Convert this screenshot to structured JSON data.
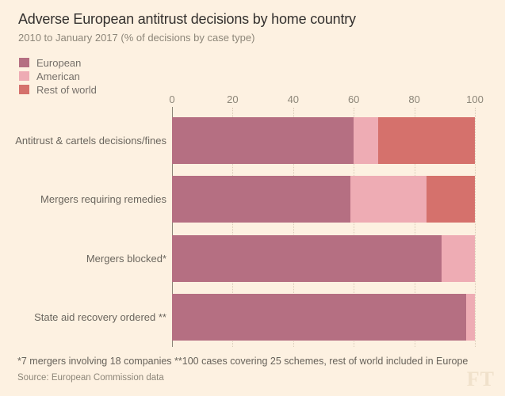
{
  "header": {
    "title": "Adverse European antitrust decisions by home country",
    "subtitle": "2010 to January 2017 (% of decisions by case type)"
  },
  "legend": [
    {
      "label": "European",
      "color": "#b56f82"
    },
    {
      "label": "American",
      "color": "#eeacb4"
    },
    {
      "label": "Rest of world",
      "color": "#d5716c"
    }
  ],
  "chart_data": {
    "type": "bar",
    "orientation": "horizontal",
    "stacked": true,
    "title": "Adverse European antitrust decisions by home country",
    "subtitle": "2010 to January 2017 (% of decisions by case type)",
    "categories": [
      "Antitrust & cartels decisions/fines",
      "Mergers requiring remedies",
      "Mergers blocked*",
      "State aid recovery ordered **"
    ],
    "series": [
      {
        "name": "European",
        "color": "#b56f82",
        "values": [
          60,
          59,
          89,
          97
        ]
      },
      {
        "name": "American",
        "color": "#eeacb4",
        "values": [
          8,
          25,
          11,
          3
        ]
      },
      {
        "name": "Rest of world",
        "color": "#d5716c",
        "values": [
          32,
          16,
          0,
          0
        ]
      }
    ],
    "x_ticks": [
      0,
      20,
      40,
      60,
      80,
      100
    ],
    "xlim": [
      0,
      100
    ],
    "unit": "%",
    "grid": "dotted-vertical",
    "legend_position": "top-left"
  },
  "footnote": "*7 mergers involving 18 companies **100 cases covering 25 schemes, rest of world included in Europe",
  "source": "Source: European Commission data",
  "branding": {
    "logo": "FT"
  },
  "colors": {
    "background": "#fdf1e1",
    "european": "#b56f82",
    "american": "#eeacb4",
    "rest_of_world": "#d5716c",
    "title_text": "#33302e",
    "muted_text": "#8d8679",
    "label_text": "#6b665e",
    "axis_line": "#8d8577",
    "gridline": "#d9cbb7",
    "ft_logo": "#f0e1cb"
  }
}
